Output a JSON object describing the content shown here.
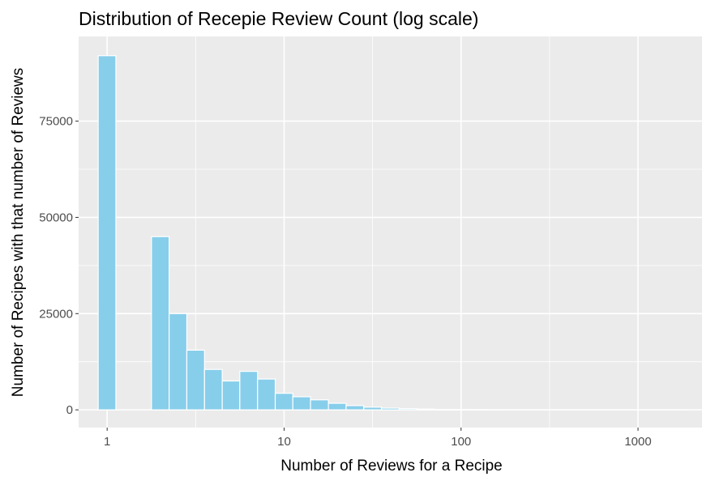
{
  "chart_data": {
    "type": "bar",
    "title": "Distribution of Recepie Review Count (log scale)",
    "xlabel": "Number of Reviews for a Recipe",
    "ylabel": "Number of Recipes with that number of Reviews",
    "x_scale": "log10",
    "xlim": [
      0.69,
      2300
    ],
    "ylim": [
      -4600,
      97000
    ],
    "x_ticks": [
      {
        "value": 1,
        "label": "1"
      },
      {
        "value": 10,
        "label": "10"
      },
      {
        "value": 100,
        "label": "100"
      },
      {
        "value": 1000,
        "label": "1000"
      }
    ],
    "y_ticks": [
      {
        "value": 0,
        "label": "0"
      },
      {
        "value": 25000,
        "label": "25000"
      },
      {
        "value": 50000,
        "label": "50000"
      },
      {
        "value": 75000,
        "label": "75000"
      }
    ],
    "bins": [
      {
        "x_min": 0.89,
        "x_max": 1.12,
        "count": 92000
      },
      {
        "x_min": 1.12,
        "x_max": 1.41,
        "count": 0
      },
      {
        "x_min": 1.41,
        "x_max": 1.78,
        "count": 0
      },
      {
        "x_min": 1.78,
        "x_max": 2.24,
        "count": 45000
      },
      {
        "x_min": 2.24,
        "x_max": 2.82,
        "count": 25000
      },
      {
        "x_min": 2.82,
        "x_max": 3.55,
        "count": 15500
      },
      {
        "x_min": 3.55,
        "x_max": 4.47,
        "count": 10500
      },
      {
        "x_min": 4.47,
        "x_max": 5.62,
        "count": 7500
      },
      {
        "x_min": 5.62,
        "x_max": 7.08,
        "count": 10000
      },
      {
        "x_min": 7.08,
        "x_max": 8.91,
        "count": 8000
      },
      {
        "x_min": 8.91,
        "x_max": 11.2,
        "count": 4300
      },
      {
        "x_min": 11.2,
        "x_max": 14.1,
        "count": 3400
      },
      {
        "x_min": 14.1,
        "x_max": 17.8,
        "count": 2600
      },
      {
        "x_min": 17.8,
        "x_max": 22.4,
        "count": 1700
      },
      {
        "x_min": 22.4,
        "x_max": 28.2,
        "count": 1100
      },
      {
        "x_min": 28.2,
        "x_max": 35.5,
        "count": 700
      },
      {
        "x_min": 35.5,
        "x_max": 44.7,
        "count": 450
      },
      {
        "x_min": 44.7,
        "x_max": 56.2,
        "count": 300
      },
      {
        "x_min": 56.2,
        "x_max": 70.8,
        "count": 200
      },
      {
        "x_min": 70.8,
        "x_max": 89.1,
        "count": 130
      },
      {
        "x_min": 89.1,
        "x_max": 112,
        "count": 90
      },
      {
        "x_min": 112,
        "x_max": 141,
        "count": 60
      },
      {
        "x_min": 141,
        "x_max": 178,
        "count": 40
      },
      {
        "x_min": 178,
        "x_max": 224,
        "count": 25
      },
      {
        "x_min": 224,
        "x_max": 282,
        "count": 15
      },
      {
        "x_min": 282,
        "x_max": 355,
        "count": 10
      },
      {
        "x_min": 355,
        "x_max": 447,
        "count": 6
      },
      {
        "x_min": 447,
        "x_max": 562,
        "count": 4
      },
      {
        "x_min": 562,
        "x_max": 708,
        "count": 3
      },
      {
        "x_min": 708,
        "x_max": 891,
        "count": 2
      },
      {
        "x_min": 891,
        "x_max": 1120,
        "count": 1
      },
      {
        "x_min": 1120,
        "x_max": 1410,
        "count": 1
      },
      {
        "x_min": 1410,
        "x_max": 1780,
        "count": 1
      }
    ],
    "grid": true,
    "legend": "none",
    "colors": {
      "bar_fill": "#87ceeb",
      "bar_stroke": "#ffffff",
      "panel_background": "#ebebeb",
      "grid_line": "#ffffff",
      "tick_text": "#4d4d4d",
      "tick_mark": "#333333"
    }
  }
}
